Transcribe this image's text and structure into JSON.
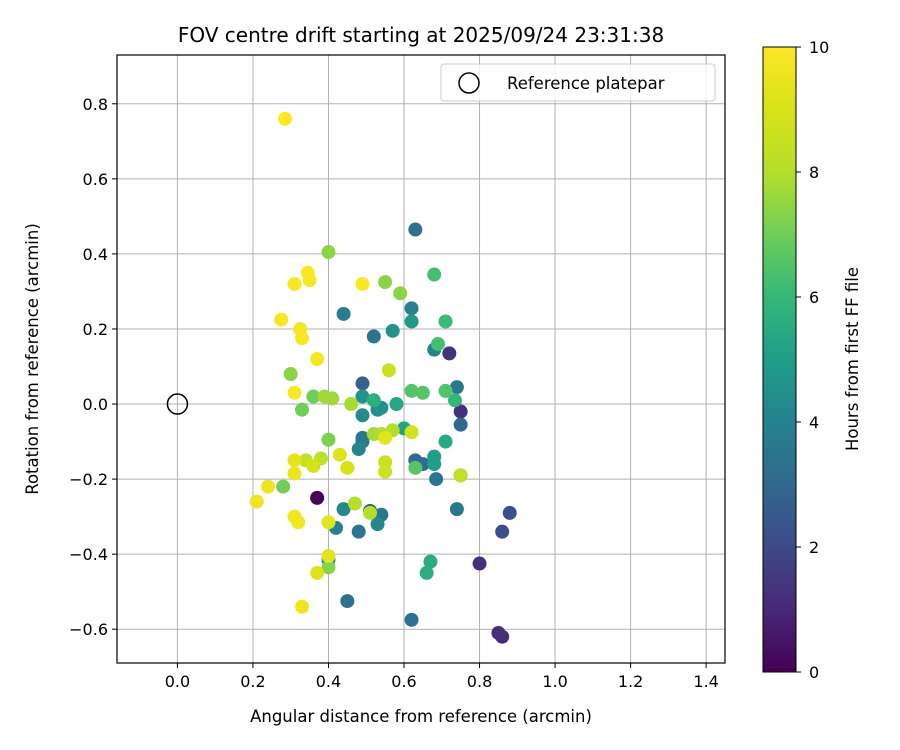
{
  "chart_data": {
    "type": "scatter",
    "title": "FOV centre drift starting at 2025/09/24 23:31:38",
    "xlabel": "Angular distance from reference (arcmin)",
    "ylabel": "Rotation from reference (arcmin)",
    "xlim": [
      -0.16,
      1.45
    ],
    "ylim": [
      -0.69,
      0.93
    ],
    "xticks": [
      0.0,
      0.2,
      0.4,
      0.6,
      0.8,
      1.0,
      1.2,
      1.4
    ],
    "xtick_labels": [
      "0.0",
      "0.2",
      "0.4",
      "0.6",
      "0.8",
      "1.0",
      "1.2",
      "1.4"
    ],
    "yticks": [
      -0.6,
      -0.4,
      -0.2,
      0.0,
      0.2,
      0.4,
      0.6,
      0.8
    ],
    "ytick_labels": [
      "−0.6",
      "−0.4",
      "−0.2",
      "0.0",
      "0.2",
      "0.4",
      "0.6",
      "0.8"
    ],
    "grid": true,
    "legend": {
      "label": "Reference platepar",
      "placement": "top-right"
    },
    "reference_point": {
      "x": 0.0,
      "y": 0.0
    },
    "colorbar": {
      "label": "Hours from first FF file",
      "min": 0,
      "max": 10,
      "ticks": [
        0,
        2,
        4,
        6,
        8,
        10
      ],
      "tick_labels": [
        "0",
        "2",
        "4",
        "6",
        "8",
        "10"
      ],
      "colormap": "viridis"
    },
    "points": [
      {
        "x": 0.37,
        "y": -0.25,
        "hours": 0.1
      },
      {
        "x": 0.86,
        "y": -0.62,
        "hours": 1.1
      },
      {
        "x": 0.85,
        "y": -0.61,
        "hours": 1.2
      },
      {
        "x": 0.8,
        "y": -0.425,
        "hours": 1.2
      },
      {
        "x": 0.75,
        "y": -0.02,
        "hours": 1.2
      },
      {
        "x": 0.72,
        "y": 0.135,
        "hours": 1.3
      },
      {
        "x": 0.88,
        "y": -0.29,
        "hours": 2.2
      },
      {
        "x": 0.86,
        "y": -0.34,
        "hours": 2.2
      },
      {
        "x": 0.51,
        "y": -0.285,
        "hours": 2.5
      },
      {
        "x": 0.49,
        "y": 0.055,
        "hours": 2.8
      },
      {
        "x": 0.75,
        "y": -0.055,
        "hours": 3.0
      },
      {
        "x": 0.63,
        "y": -0.15,
        "hours": 3.0
      },
      {
        "x": 0.65,
        "y": -0.16,
        "hours": 3.1
      },
      {
        "x": 0.63,
        "y": 0.465,
        "hours": 3.3
      },
      {
        "x": 0.45,
        "y": -0.525,
        "hours": 3.3
      },
      {
        "x": 0.62,
        "y": -0.575,
        "hours": 3.4
      },
      {
        "x": 0.52,
        "y": 0.18,
        "hours": 3.4
      },
      {
        "x": 0.54,
        "y": -0.295,
        "hours": 3.5
      },
      {
        "x": 0.48,
        "y": -0.34,
        "hours": 3.5
      },
      {
        "x": 0.685,
        "y": -0.2,
        "hours": 3.5
      },
      {
        "x": 0.74,
        "y": -0.28,
        "hours": 3.6
      },
      {
        "x": 0.74,
        "y": 0.045,
        "hours": 3.6
      },
      {
        "x": 0.75,
        "y": -0.19,
        "hours": 3.6
      },
      {
        "x": 0.49,
        "y": -0.09,
        "hours": 3.7
      },
      {
        "x": 0.49,
        "y": -0.1,
        "hours": 3.7
      },
      {
        "x": 0.44,
        "y": 0.24,
        "hours": 3.8
      },
      {
        "x": 0.42,
        "y": -0.33,
        "hours": 4.0
      },
      {
        "x": 0.4,
        "y": -0.415,
        "hours": 4.0
      },
      {
        "x": 0.62,
        "y": 0.255,
        "hours": 4.0
      },
      {
        "x": 0.68,
        "y": 0.145,
        "hours": 4.1
      },
      {
        "x": 0.48,
        "y": -0.12,
        "hours": 4.1
      },
      {
        "x": 0.44,
        "y": -0.28,
        "hours": 4.2
      },
      {
        "x": 0.53,
        "y": -0.32,
        "hours": 4.2
      },
      {
        "x": 0.49,
        "y": -0.03,
        "hours": 4.3
      },
      {
        "x": 0.53,
        "y": -0.015,
        "hours": 4.4
      },
      {
        "x": 0.54,
        "y": -0.01,
        "hours": 4.5
      },
      {
        "x": 0.57,
        "y": 0.195,
        "hours": 4.5
      },
      {
        "x": 0.49,
        "y": 0.02,
        "hours": 4.6
      },
      {
        "x": 0.62,
        "y": 0.22,
        "hours": 4.8
      },
      {
        "x": 0.68,
        "y": -0.14,
        "hours": 5.0
      },
      {
        "x": 0.68,
        "y": -0.16,
        "hours": 5.0
      },
      {
        "x": 0.6,
        "y": -0.065,
        "hours": 5.2
      },
      {
        "x": 0.58,
        "y": 0.0,
        "hours": 5.3
      },
      {
        "x": 0.71,
        "y": -0.1,
        "hours": 5.4
      },
      {
        "x": 0.67,
        "y": -0.42,
        "hours": 5.5
      },
      {
        "x": 0.66,
        "y": -0.45,
        "hours": 5.6
      },
      {
        "x": 0.52,
        "y": 0.01,
        "hours": 5.7
      },
      {
        "x": 0.735,
        "y": 0.01,
        "hours": 6.0
      },
      {
        "x": 0.71,
        "y": 0.22,
        "hours": 6.1
      },
      {
        "x": 0.68,
        "y": 0.345,
        "hours": 6.3
      },
      {
        "x": 0.69,
        "y": 0.16,
        "hours": 6.3
      },
      {
        "x": 0.71,
        "y": 0.035,
        "hours": 6.5
      },
      {
        "x": 0.62,
        "y": 0.035,
        "hours": 6.5
      },
      {
        "x": 0.65,
        "y": 0.03,
        "hours": 6.6
      },
      {
        "x": 0.63,
        "y": -0.17,
        "hours": 6.6
      },
      {
        "x": 0.36,
        "y": 0.02,
        "hours": 7.0
      },
      {
        "x": 0.33,
        "y": -0.015,
        "hours": 7.0
      },
      {
        "x": 0.28,
        "y": -0.22,
        "hours": 7.0
      },
      {
        "x": 0.4,
        "y": -0.095,
        "hours": 7.2
      },
      {
        "x": 0.4,
        "y": -0.435,
        "hours": 7.3
      },
      {
        "x": 0.3,
        "y": 0.08,
        "hours": 7.4
      },
      {
        "x": 0.4,
        "y": 0.405,
        "hours": 7.4
      },
      {
        "x": 0.55,
        "y": 0.325,
        "hours": 7.4
      },
      {
        "x": 0.59,
        "y": 0.295,
        "hours": 7.4
      },
      {
        "x": 0.39,
        "y": 0.02,
        "hours": 7.7
      },
      {
        "x": 0.41,
        "y": 0.015,
        "hours": 7.7
      },
      {
        "x": 0.46,
        "y": 0.0,
        "hours": 7.8
      },
      {
        "x": 0.52,
        "y": -0.08,
        "hours": 7.8
      },
      {
        "x": 0.54,
        "y": -0.08,
        "hours": 7.9
      },
      {
        "x": 0.57,
        "y": -0.07,
        "hours": 8.0
      },
      {
        "x": 0.47,
        "y": -0.265,
        "hours": 8.0
      },
      {
        "x": 0.51,
        "y": -0.29,
        "hours": 8.0
      },
      {
        "x": 0.38,
        "y": -0.145,
        "hours": 8.2
      },
      {
        "x": 0.34,
        "y": -0.15,
        "hours": 8.4
      },
      {
        "x": 0.75,
        "y": -0.19,
        "hours": 8.4
      },
      {
        "x": 0.56,
        "y": 0.09,
        "hours": 8.6
      },
      {
        "x": 0.55,
        "y": -0.155,
        "hours": 8.6
      },
      {
        "x": 0.55,
        "y": -0.18,
        "hours": 8.7
      },
      {
        "x": 0.62,
        "y": -0.075,
        "hours": 8.8
      },
      {
        "x": 0.36,
        "y": -0.165,
        "hours": 8.9
      },
      {
        "x": 0.45,
        "y": -0.17,
        "hours": 9.0
      },
      {
        "x": 0.43,
        "y": -0.135,
        "hours": 9.2
      },
      {
        "x": 0.37,
        "y": -0.45,
        "hours": 9.2
      },
      {
        "x": 0.4,
        "y": -0.405,
        "hours": 9.3
      },
      {
        "x": 0.4,
        "y": -0.315,
        "hours": 9.3
      },
      {
        "x": 0.55,
        "y": -0.09,
        "hours": 9.3
      },
      {
        "x": 0.31,
        "y": -0.15,
        "hours": 9.4
      },
      {
        "x": 0.31,
        "y": -0.185,
        "hours": 9.5
      },
      {
        "x": 0.24,
        "y": -0.22,
        "hours": 9.6
      },
      {
        "x": 0.21,
        "y": -0.26,
        "hours": 9.6
      },
      {
        "x": 0.31,
        "y": -0.3,
        "hours": 9.7
      },
      {
        "x": 0.32,
        "y": -0.315,
        "hours": 9.7
      },
      {
        "x": 0.33,
        "y": -0.54,
        "hours": 9.6
      },
      {
        "x": 0.37,
        "y": 0.12,
        "hours": 9.8
      },
      {
        "x": 0.33,
        "y": 0.175,
        "hours": 9.8
      },
      {
        "x": 0.325,
        "y": 0.2,
        "hours": 9.8
      },
      {
        "x": 0.275,
        "y": 0.225,
        "hours": 9.8
      },
      {
        "x": 0.31,
        "y": 0.32,
        "hours": 9.9
      },
      {
        "x": 0.35,
        "y": 0.33,
        "hours": 9.9
      },
      {
        "x": 0.345,
        "y": 0.35,
        "hours": 9.9
      },
      {
        "x": 0.49,
        "y": 0.32,
        "hours": 9.9
      },
      {
        "x": 0.285,
        "y": 0.76,
        "hours": 10.0
      },
      {
        "x": 0.31,
        "y": 0.03,
        "hours": 9.9
      }
    ]
  }
}
